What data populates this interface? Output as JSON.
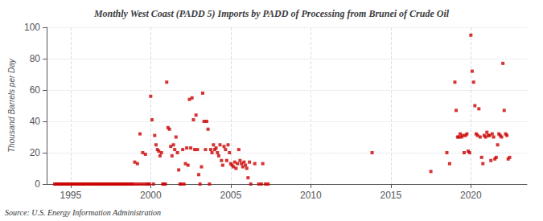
{
  "chart_data": {
    "type": "scatter",
    "title": "Monthly West Coast (PADD 5) Imports by PADD of Processing from Brunei of Crude Oil",
    "ylabel": "Thousand Barrels per Day",
    "annotation": "Source: U.S. Energy Information Administration",
    "color": "#cc0000",
    "marker": "square",
    "grid": true,
    "xlim": [
      1993.5,
      2023.5
    ],
    "ylim": [
      0,
      100
    ],
    "xticks": [
      1995,
      2000,
      2005,
      2010,
      2015,
      2020
    ],
    "yticks": [
      0,
      20,
      40,
      60,
      80,
      100
    ],
    "x": [
      1994.0,
      1994.08,
      1994.17,
      1994.25,
      1994.33,
      1994.42,
      1994.5,
      1994.58,
      1994.67,
      1994.75,
      1994.83,
      1994.92,
      1995.0,
      1995.08,
      1995.17,
      1995.25,
      1995.33,
      1995.42,
      1995.5,
      1995.58,
      1995.67,
      1995.75,
      1995.83,
      1995.92,
      1996.0,
      1996.08,
      1996.17,
      1996.25,
      1996.33,
      1996.42,
      1996.5,
      1996.58,
      1996.67,
      1996.75,
      1996.83,
      1996.92,
      1997.0,
      1997.08,
      1997.17,
      1997.25,
      1997.33,
      1997.42,
      1997.5,
      1997.58,
      1997.67,
      1997.75,
      1997.83,
      1997.92,
      1998.0,
      1998.08,
      1998.17,
      1998.25,
      1998.33,
      1998.42,
      1998.5,
      1998.58,
      1998.67,
      1998.75,
      1998.83,
      1998.92,
      1999.0,
      1999.08,
      1999.17,
      1999.25,
      1999.33,
      1999.42,
      1999.5,
      1999.58,
      1999.67,
      1999.75,
      1999.83,
      1999.92,
      2000.0,
      2000.08,
      2000.17,
      2000.25,
      2000.33,
      2000.42,
      2000.5,
      2000.58,
      2000.67,
      2000.75,
      2000.83,
      2000.92,
      2001.0,
      2001.08,
      2001.17,
      2001.25,
      2001.33,
      2001.42,
      2001.5,
      2001.58,
      2001.67,
      2001.75,
      2001.83,
      2001.92,
      2002.0,
      2002.08,
      2002.17,
      2002.25,
      2002.33,
      2002.42,
      2002.5,
      2002.58,
      2002.67,
      2002.75,
      2002.83,
      2002.92,
      2003.0,
      2003.08,
      2003.17,
      2003.25,
      2003.33,
      2003.42,
      2003.5,
      2003.58,
      2003.67,
      2003.75,
      2003.83,
      2003.92,
      2004.0,
      2004.08,
      2004.17,
      2004.25,
      2004.33,
      2004.42,
      2004.5,
      2004.58,
      2004.67,
      2004.75,
      2004.83,
      2004.92,
      2005.0,
      2005.08,
      2005.17,
      2005.25,
      2005.33,
      2005.42,
      2005.5,
      2005.58,
      2005.67,
      2005.75,
      2005.83,
      2005.92,
      2006.0,
      2006.08,
      2006.17,
      2006.25,
      2006.5,
      2006.75,
      2006.92,
      2007.0,
      2007.17,
      2007.33,
      2013.83,
      2017.5,
      2018.5,
      2018.67,
      2019.0,
      2019.08,
      2019.17,
      2019.25,
      2019.33,
      2019.42,
      2019.5,
      2019.58,
      2019.67,
      2019.75,
      2019.83,
      2019.92,
      2020.0,
      2020.08,
      2020.17,
      2020.25,
      2020.33,
      2020.42,
      2020.5,
      2020.58,
      2020.67,
      2020.75,
      2020.83,
      2020.92,
      2021.0,
      2021.08,
      2021.17,
      2021.25,
      2021.33,
      2021.42,
      2021.5,
      2021.58,
      2021.67,
      2021.75,
      2021.83,
      2021.92,
      2022.0,
      2022.08,
      2022.17,
      2022.25,
      2022.33,
      2022.42
    ],
    "values": [
      0,
      0,
      0,
      0,
      0,
      0,
      0,
      0,
      0,
      0,
      0,
      0,
      0,
      0,
      0,
      0,
      0,
      0,
      0,
      0,
      0,
      0,
      0,
      0,
      0,
      0,
      0,
      0,
      0,
      0,
      0,
      0,
      0,
      0,
      0,
      0,
      0,
      0,
      0,
      0,
      0,
      0,
      0,
      0,
      0,
      0,
      0,
      0,
      0,
      0,
      0,
      0,
      0,
      0,
      0,
      0,
      0,
      0,
      0,
      0,
      14,
      0,
      13,
      0,
      32,
      0,
      20,
      0,
      19,
      0,
      0,
      0,
      56,
      41,
      0,
      31,
      25,
      22,
      21,
      18,
      20,
      0,
      0,
      0,
      65,
      36,
      35,
      24,
      18,
      25,
      22,
      30,
      20,
      9,
      0,
      0,
      22,
      0,
      13,
      23,
      12,
      54,
      23,
      55,
      41,
      22,
      44,
      22,
      6,
      0,
      11,
      58,
      40,
      22,
      40,
      35,
      0,
      22,
      20,
      25,
      22,
      23,
      20,
      18,
      25,
      15,
      12,
      24,
      22,
      15,
      25,
      20,
      13,
      12,
      11,
      14,
      10,
      13,
      22,
      15,
      13,
      11,
      14,
      12,
      10,
      4,
      14,
      0,
      13,
      0,
      0,
      13,
      0,
      0,
      20,
      8,
      20,
      13,
      65,
      47,
      30,
      30,
      32,
      30,
      31,
      20,
      31,
      32,
      21,
      20,
      95,
      72,
      65,
      50,
      32,
      31,
      48,
      30,
      17,
      13,
      31,
      30,
      33,
      31,
      31,
      15,
      32,
      30,
      16,
      17,
      25,
      32,
      31,
      30,
      77,
      47,
      32,
      31,
      16,
      17
    ]
  }
}
